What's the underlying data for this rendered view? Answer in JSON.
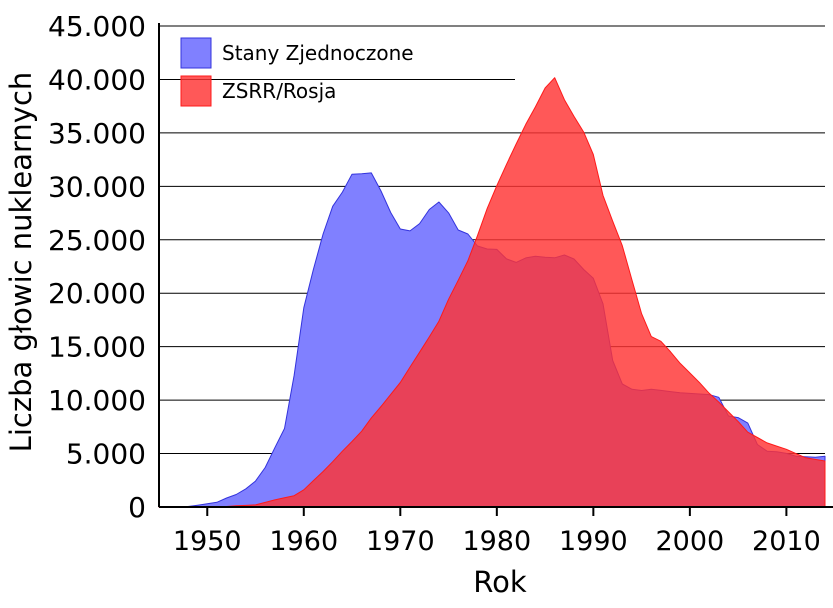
{
  "chart_data": {
    "type": "area",
    "title": "",
    "xlabel": "Rok",
    "ylabel": "Liczba głowic nuklearnych",
    "xlim": [
      1945,
      2014
    ],
    "ylim": [
      0,
      45000
    ],
    "y_ticks": [
      0,
      5000,
      10000,
      15000,
      20000,
      25000,
      30000,
      35000,
      40000,
      45000
    ],
    "y_tick_labels": [
      "0",
      "5.000",
      "10.000",
      "15.000",
      "20.000",
      "25.000",
      "30.000",
      "35.000",
      "40.000",
      "45.000"
    ],
    "x_ticks": [
      1950,
      1960,
      1970,
      1980,
      1990,
      2000,
      2010
    ],
    "x_tick_labels": [
      "1950",
      "1960",
      "1970",
      "1980",
      "1990",
      "2000",
      "2010"
    ],
    "grid": "horizontal",
    "legend_position": "top-left",
    "series": [
      {
        "name": "Stany Zjednoczone",
        "color": "#8080ff",
        "line_color": "#3333dd",
        "x": [
          1945,
          1946,
          1947,
          1948,
          1949,
          1950,
          1951,
          1952,
          1953,
          1954,
          1955,
          1956,
          1957,
          1958,
          1959,
          1960,
          1961,
          1962,
          1963,
          1964,
          1965,
          1966,
          1967,
          1968,
          1969,
          1970,
          1971,
          1972,
          1973,
          1974,
          1975,
          1976,
          1977,
          1978,
          1979,
          1980,
          1981,
          1982,
          1983,
          1984,
          1985,
          1986,
          1987,
          1988,
          1989,
          1990,
          1991,
          1992,
          1993,
          1994,
          1995,
          1996,
          1997,
          1998,
          1999,
          2000,
          2001,
          2002,
          2003,
          2004,
          2005,
          2006,
          2007,
          2008,
          2009,
          2010,
          2011,
          2012,
          2013,
          2014
        ],
        "values": [
          2,
          9,
          13,
          50,
          170,
          299,
          438,
          841,
          1169,
          1703,
          2422,
          3692,
          5543,
          7345,
          12298,
          18638,
          22229,
          25540,
          28133,
          29463,
          31139,
          31175,
          31255,
          29561,
          27552,
          26008,
          25830,
          26516,
          27835,
          28537,
          27519,
          25914,
          25542,
          24418,
          24138,
          24104,
          23208,
          22886,
          23305,
          23459,
          23368,
          23317,
          23575,
          23205,
          22217,
          21392,
          19008,
          13708,
          11511,
          11011,
          10903,
          11014,
          10907,
          10792,
          10688,
          10624,
          10571,
          10519,
          10263,
          8513,
          8364,
          7847,
          5845,
          5223,
          5176,
          5018,
          4751,
          4700,
          4650,
          4750
        ]
      },
      {
        "name": "ZSRR/Rosja",
        "color": "#ff3333",
        "line_color": "#ff1a1a",
        "x": [
          1945,
          1946,
          1947,
          1948,
          1949,
          1950,
          1951,
          1952,
          1953,
          1954,
          1955,
          1956,
          1957,
          1958,
          1959,
          1960,
          1961,
          1962,
          1963,
          1964,
          1965,
          1966,
          1967,
          1968,
          1969,
          1970,
          1971,
          1972,
          1973,
          1974,
          1975,
          1976,
          1977,
          1978,
          1979,
          1980,
          1981,
          1982,
          1983,
          1984,
          1985,
          1986,
          1987,
          1988,
          1989,
          1990,
          1991,
          1992,
          1993,
          1994,
          1995,
          1996,
          1997,
          1998,
          1999,
          2000,
          2001,
          2002,
          2003,
          2004,
          2005,
          2006,
          2007,
          2008,
          2009,
          2010,
          2011,
          2012,
          2013,
          2014
        ],
        "values": [
          0,
          0,
          0,
          0,
          1,
          5,
          25,
          50,
          120,
          150,
          200,
          426,
          660,
          869,
          1060,
          1605,
          2471,
          3322,
          4238,
          5221,
          6129,
          7089,
          8339,
          9399,
          10538,
          11643,
          13092,
          14478,
          15915,
          17385,
          19443,
          21205,
          23044,
          25393,
          27935,
          30062,
          32049,
          33952,
          35804,
          37431,
          39197,
          40159,
          38107,
          36538,
          35078,
          32980,
          29154,
          26734,
          24444,
          21226,
          18085,
          15941,
          15500,
          14514,
          13436,
          12540,
          11640,
          10640,
          9810,
          8900,
          8000,
          7000,
          6500,
          6000,
          5700,
          5400,
          5000,
          4600,
          4450,
          4300
        ]
      }
    ]
  }
}
